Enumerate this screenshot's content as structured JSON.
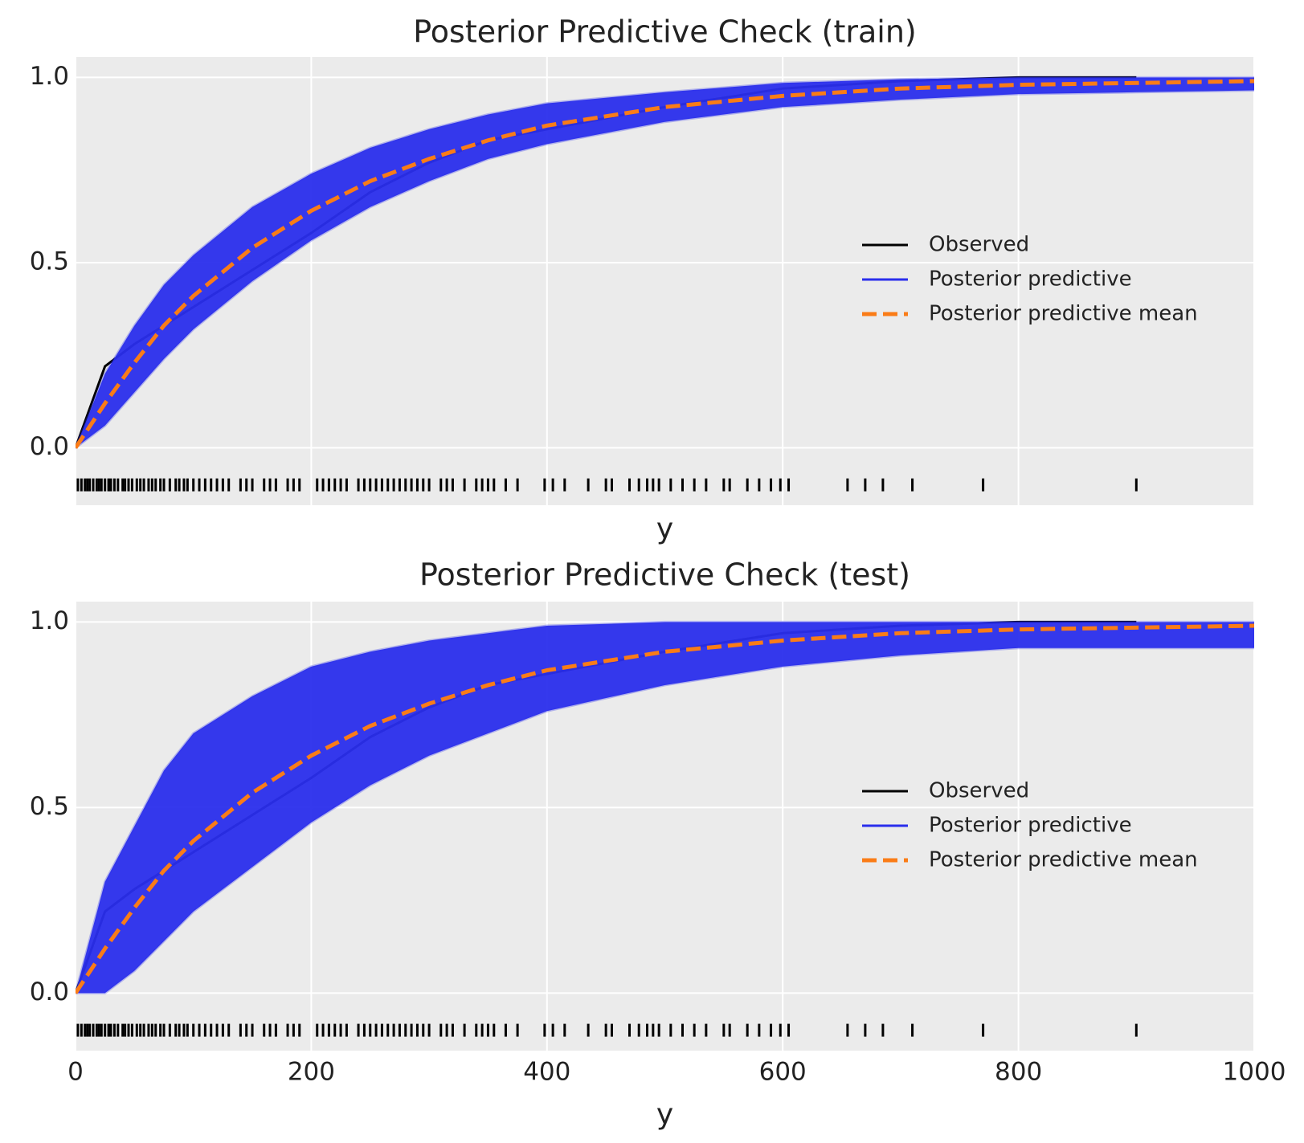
{
  "chart_data": [
    {
      "type": "ecdf",
      "title": "Posterior Predictive Check (train)",
      "x_label": "y",
      "show_xticklabels": false,
      "xlim": [
        0,
        1000
      ],
      "ylim": [
        -0.155,
        1.055
      ],
      "grid": true,
      "legend": "right",
      "xticks": [
        0,
        200,
        400,
        600,
        800,
        1000
      ],
      "yticks": [
        {
          "value": 0,
          "label": "0.0"
        },
        {
          "value": 0.5,
          "label": "0.5"
        },
        {
          "value": 1,
          "label": "1.0"
        }
      ],
      "x": [
        0,
        25,
        50,
        75,
        100,
        150,
        200,
        250,
        300,
        350,
        400,
        500,
        600,
        700,
        800,
        900,
        1000
      ],
      "series": [
        {
          "name": "Observed",
          "color": "#000000",
          "x": [
            0,
            25,
            50,
            75,
            100,
            150,
            200,
            250,
            300,
            350,
            400,
            500,
            600,
            700,
            800,
            900
          ],
          "values": [
            0,
            0.22,
            0.28,
            0.33,
            0.38,
            0.48,
            0.58,
            0.69,
            0.77,
            0.83,
            0.86,
            0.92,
            0.97,
            0.99,
            1.0,
            1.0
          ]
        },
        {
          "name": "Posterior predictive",
          "color": "#2a2eec",
          "upper": [
            0,
            0.2,
            0.33,
            0.44,
            0.52,
            0.65,
            0.74,
            0.81,
            0.86,
            0.9,
            0.93,
            0.96,
            0.985,
            0.995,
            1,
            1,
            1
          ],
          "lower": [
            0,
            0.06,
            0.15,
            0.24,
            0.32,
            0.45,
            0.56,
            0.65,
            0.72,
            0.78,
            0.82,
            0.88,
            0.92,
            0.94,
            0.955,
            0.96,
            0.965
          ]
        },
        {
          "name": "Posterior predictive mean",
          "color": "#fa7c17",
          "values": [
            0,
            0.12,
            0.23,
            0.33,
            0.41,
            0.54,
            0.64,
            0.72,
            0.78,
            0.83,
            0.87,
            0.92,
            0.95,
            0.97,
            0.98,
            0.985,
            0.99
          ]
        }
      ],
      "rug": [
        2,
        5,
        8,
        10,
        12,
        15,
        18,
        20,
        22,
        25,
        28,
        30,
        33,
        36,
        40,
        42,
        45,
        48,
        52,
        55,
        58,
        62,
        65,
        68,
        72,
        75,
        80,
        85,
        88,
        92,
        95,
        100,
        105,
        110,
        115,
        120,
        125,
        130,
        140,
        145,
        150,
        160,
        165,
        170,
        180,
        185,
        190,
        205,
        210,
        215,
        220,
        225,
        230,
        240,
        245,
        250,
        255,
        260,
        265,
        270,
        275,
        280,
        285,
        290,
        295,
        300,
        310,
        315,
        320,
        330,
        340,
        345,
        350,
        355,
        365,
        375,
        398,
        405,
        415,
        435,
        450,
        455,
        470,
        478,
        485,
        490,
        495,
        505,
        515,
        525,
        535,
        550,
        555,
        570,
        580,
        590,
        598,
        605,
        655,
        670,
        685,
        710,
        770,
        900
      ],
      "rug_y": -0.1
    },
    {
      "type": "ecdf",
      "title": "Posterior Predictive Check (test)",
      "x_label": "y",
      "show_xticklabels": true,
      "xlim": [
        0,
        1000
      ],
      "ylim": [
        -0.155,
        1.055
      ],
      "grid": true,
      "legend": "right",
      "xticks": [
        0,
        200,
        400,
        600,
        800,
        1000
      ],
      "yticks": [
        {
          "value": 0,
          "label": "0.0"
        },
        {
          "value": 0.5,
          "label": "0.5"
        },
        {
          "value": 1,
          "label": "1.0"
        }
      ],
      "x": [
        0,
        25,
        50,
        75,
        100,
        150,
        200,
        250,
        300,
        350,
        400,
        500,
        600,
        700,
        800,
        900,
        1000
      ],
      "series": [
        {
          "name": "Observed",
          "color": "#000000",
          "x": [
            0,
            25,
            50,
            75,
            100,
            150,
            200,
            250,
            300,
            350,
            400,
            500,
            600,
            700,
            800,
            900
          ],
          "values": [
            0,
            0.22,
            0.28,
            0.33,
            0.38,
            0.48,
            0.58,
            0.69,
            0.77,
            0.83,
            0.86,
            0.92,
            0.97,
            0.99,
            1.0,
            1.0
          ]
        },
        {
          "name": "Posterior predictive",
          "color": "#2a2eec",
          "upper": [
            0,
            0.3,
            0.45,
            0.6,
            0.7,
            0.8,
            0.88,
            0.92,
            0.95,
            0.97,
            0.99,
            1,
            1,
            1,
            1,
            1,
            1
          ],
          "lower": [
            0,
            0,
            0.06,
            0.14,
            0.22,
            0.34,
            0.46,
            0.56,
            0.64,
            0.7,
            0.76,
            0.83,
            0.88,
            0.91,
            0.93,
            0.93,
            0.93
          ]
        },
        {
          "name": "Posterior predictive mean",
          "color": "#fa7c17",
          "values": [
            0,
            0.12,
            0.23,
            0.33,
            0.41,
            0.54,
            0.64,
            0.72,
            0.78,
            0.83,
            0.87,
            0.92,
            0.95,
            0.97,
            0.98,
            0.985,
            0.99
          ]
        }
      ],
      "rug": [
        2,
        5,
        8,
        10,
        12,
        15,
        18,
        20,
        22,
        25,
        28,
        30,
        33,
        36,
        40,
        42,
        45,
        48,
        52,
        55,
        58,
        62,
        65,
        68,
        72,
        75,
        80,
        85,
        88,
        92,
        95,
        100,
        105,
        110,
        115,
        120,
        125,
        130,
        140,
        145,
        150,
        160,
        165,
        170,
        180,
        185,
        190,
        205,
        210,
        215,
        220,
        225,
        230,
        240,
        245,
        250,
        255,
        260,
        265,
        270,
        275,
        280,
        285,
        290,
        295,
        300,
        310,
        315,
        320,
        330,
        340,
        345,
        350,
        355,
        365,
        375,
        398,
        405,
        415,
        435,
        450,
        455,
        470,
        478,
        485,
        490,
        495,
        505,
        515,
        525,
        535,
        550,
        555,
        570,
        580,
        590,
        598,
        605,
        655,
        670,
        685,
        710,
        770,
        900
      ],
      "rug_y": -0.1
    }
  ]
}
